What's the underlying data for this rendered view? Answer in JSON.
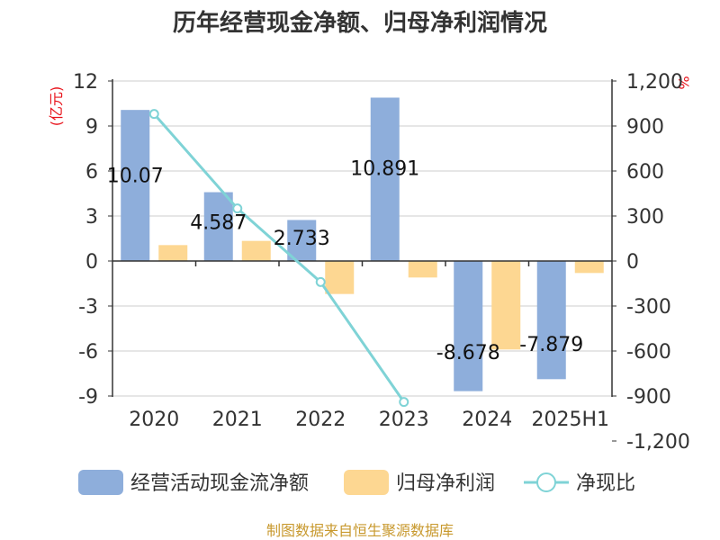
{
  "chart_data": {
    "type": "bar",
    "title": "历年经营现金净额、归母净利润情况",
    "categories": [
      "2020",
      "2021",
      "2022",
      "2023",
      "2024",
      "2025H1"
    ],
    "left_axis": {
      "unit": "(亿元)",
      "ticks": [
        12,
        9,
        6,
        3,
        0,
        -3,
        -6,
        -9
      ],
      "range": [
        -9,
        12
      ]
    },
    "right_axis": {
      "unit": "%",
      "ticks": [
        "1,200",
        "900",
        "600",
        "300",
        "0",
        "-300",
        "-600",
        "-900",
        "-1,200"
      ],
      "range": [
        -1200,
        1200
      ]
    },
    "series": [
      {
        "name": "经营活动现金流净额",
        "type": "bar",
        "axis": "left",
        "color": "#8eaedb",
        "values": [
          10.07,
          4.587,
          2.733,
          10.891,
          -8.678,
          -7.879
        ],
        "labels": [
          "10.07",
          "4.587",
          "2.733",
          "10.891",
          "-8.678",
          "-7.879"
        ]
      },
      {
        "name": "归母净利润",
        "type": "bar",
        "axis": "left",
        "color": "#fdd792",
        "values": [
          1.06,
          1.34,
          -2.2,
          -1.1,
          -5.9,
          -0.8
        ]
      },
      {
        "name": "净现比",
        "type": "line",
        "axis": "right",
        "color": "#7fd3d6",
        "values": [
          980,
          350,
          -140,
          -940,
          null,
          null
        ]
      }
    ],
    "grid": true,
    "legend": "bottom"
  },
  "source": "制图数据来自恒生聚源数据库"
}
